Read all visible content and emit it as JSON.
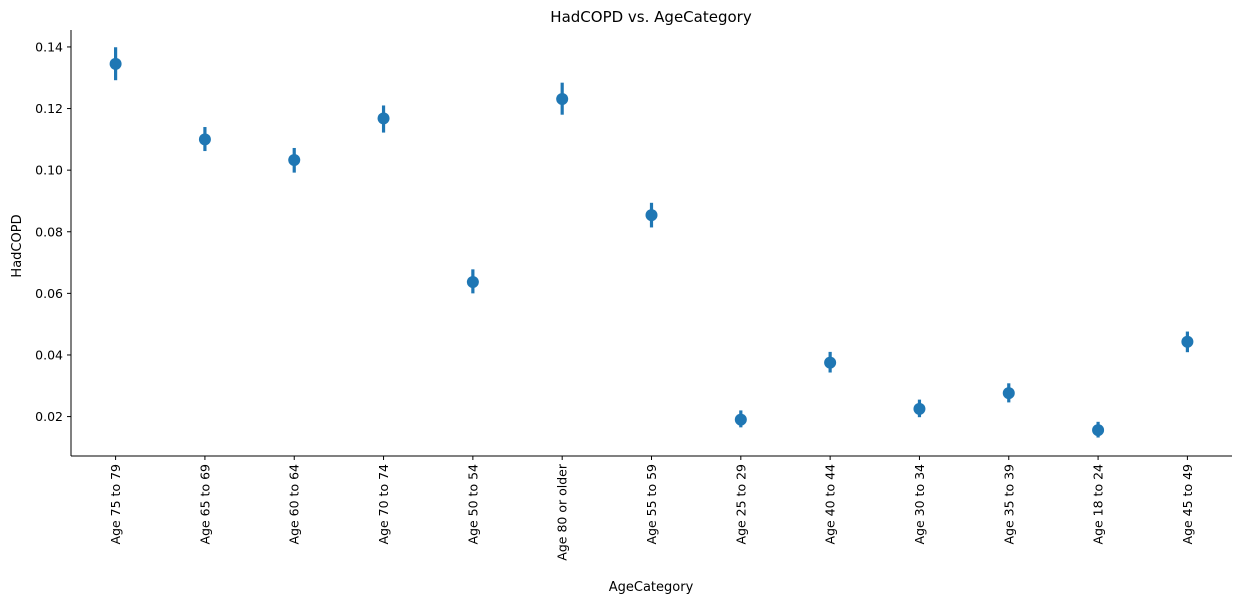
{
  "chart_data": {
    "type": "scatter",
    "style": "pointplot-with-error-bars",
    "title": "HadCOPD vs. AgeCategory",
    "xlabel": "AgeCategory",
    "ylabel": "HadCOPD",
    "categories": [
      "Age 75 to 79",
      "Age 65 to 69",
      "Age 60 to 64",
      "Age 70 to 74",
      "Age 50 to 54",
      "Age 80 or older",
      "Age 55 to 59",
      "Age 25 to 29",
      "Age 40 to 44",
      "Age 30 to 34",
      "Age 35 to 39",
      "Age 18 to 24",
      "Age 45 to 49"
    ],
    "values": [
      0.1345,
      0.11,
      0.1033,
      0.1168,
      0.0637,
      0.1231,
      0.0854,
      0.019,
      0.0375,
      0.0225,
      0.0276,
      0.0156,
      0.0443
    ],
    "ci_lower": [
      0.1292,
      0.1062,
      0.0992,
      0.1122,
      0.06,
      0.118,
      0.0814,
      0.0165,
      0.0343,
      0.0198,
      0.0246,
      0.0132,
      0.0409
    ],
    "ci_upper": [
      0.1399,
      0.114,
      0.1072,
      0.121,
      0.0678,
      0.1284,
      0.0894,
      0.022,
      0.041,
      0.0255,
      0.0308,
      0.0183,
      0.0476
    ],
    "ylim": [
      0.0072,
      0.1455
    ],
    "yticks": [
      "0.02",
      "0.04",
      "0.06",
      "0.08",
      "0.10",
      "0.12",
      "0.14"
    ],
    "ytick_values": [
      0.02,
      0.04,
      0.06,
      0.08,
      0.1,
      0.12,
      0.14
    ],
    "color": "#1f77b4",
    "grid": false,
    "legend": "none"
  }
}
